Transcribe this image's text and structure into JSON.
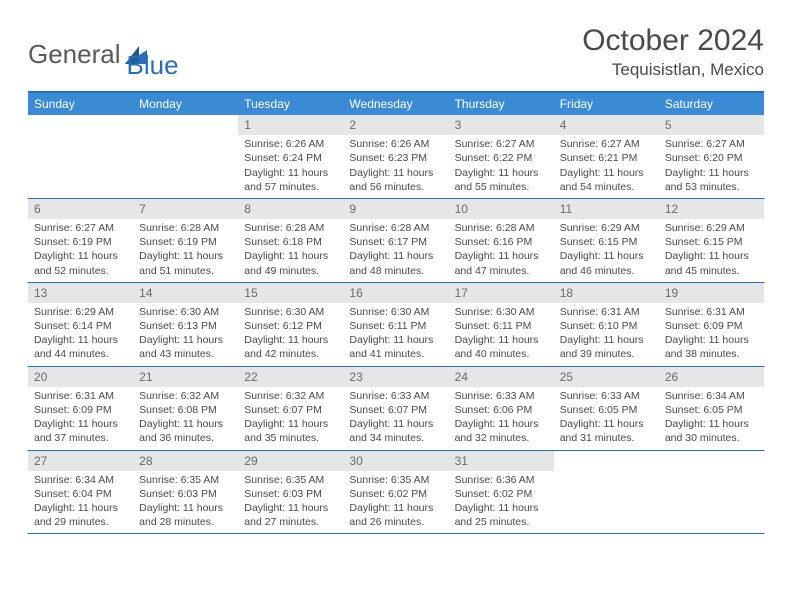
{
  "logo": {
    "part1": "General",
    "part2": "Blue"
  },
  "title": "October 2024",
  "location": "Tequisistlan, Mexico",
  "colors": {
    "header_bg": "#3b8bd4",
    "border": "#2a6fb5",
    "daynum_bg": "#e6e6e6",
    "text": "#4a4a4a"
  },
  "dow": [
    "Sunday",
    "Monday",
    "Tuesday",
    "Wednesday",
    "Thursday",
    "Friday",
    "Saturday"
  ],
  "weeks": [
    [
      null,
      null,
      {
        "n": "1",
        "sr": "6:26 AM",
        "ss": "6:24 PM",
        "dl": "11 hours and 57 minutes."
      },
      {
        "n": "2",
        "sr": "6:26 AM",
        "ss": "6:23 PM",
        "dl": "11 hours and 56 minutes."
      },
      {
        "n": "3",
        "sr": "6:27 AM",
        "ss": "6:22 PM",
        "dl": "11 hours and 55 minutes."
      },
      {
        "n": "4",
        "sr": "6:27 AM",
        "ss": "6:21 PM",
        "dl": "11 hours and 54 minutes."
      },
      {
        "n": "5",
        "sr": "6:27 AM",
        "ss": "6:20 PM",
        "dl": "11 hours and 53 minutes."
      }
    ],
    [
      {
        "n": "6",
        "sr": "6:27 AM",
        "ss": "6:19 PM",
        "dl": "11 hours and 52 minutes."
      },
      {
        "n": "7",
        "sr": "6:28 AM",
        "ss": "6:19 PM",
        "dl": "11 hours and 51 minutes."
      },
      {
        "n": "8",
        "sr": "6:28 AM",
        "ss": "6:18 PM",
        "dl": "11 hours and 49 minutes."
      },
      {
        "n": "9",
        "sr": "6:28 AM",
        "ss": "6:17 PM",
        "dl": "11 hours and 48 minutes."
      },
      {
        "n": "10",
        "sr": "6:28 AM",
        "ss": "6:16 PM",
        "dl": "11 hours and 47 minutes."
      },
      {
        "n": "11",
        "sr": "6:29 AM",
        "ss": "6:15 PM",
        "dl": "11 hours and 46 minutes."
      },
      {
        "n": "12",
        "sr": "6:29 AM",
        "ss": "6:15 PM",
        "dl": "11 hours and 45 minutes."
      }
    ],
    [
      {
        "n": "13",
        "sr": "6:29 AM",
        "ss": "6:14 PM",
        "dl": "11 hours and 44 minutes."
      },
      {
        "n": "14",
        "sr": "6:30 AM",
        "ss": "6:13 PM",
        "dl": "11 hours and 43 minutes."
      },
      {
        "n": "15",
        "sr": "6:30 AM",
        "ss": "6:12 PM",
        "dl": "11 hours and 42 minutes."
      },
      {
        "n": "16",
        "sr": "6:30 AM",
        "ss": "6:11 PM",
        "dl": "11 hours and 41 minutes."
      },
      {
        "n": "17",
        "sr": "6:30 AM",
        "ss": "6:11 PM",
        "dl": "11 hours and 40 minutes."
      },
      {
        "n": "18",
        "sr": "6:31 AM",
        "ss": "6:10 PM",
        "dl": "11 hours and 39 minutes."
      },
      {
        "n": "19",
        "sr": "6:31 AM",
        "ss": "6:09 PM",
        "dl": "11 hours and 38 minutes."
      }
    ],
    [
      {
        "n": "20",
        "sr": "6:31 AM",
        "ss": "6:09 PM",
        "dl": "11 hours and 37 minutes."
      },
      {
        "n": "21",
        "sr": "6:32 AM",
        "ss": "6:08 PM",
        "dl": "11 hours and 36 minutes."
      },
      {
        "n": "22",
        "sr": "6:32 AM",
        "ss": "6:07 PM",
        "dl": "11 hours and 35 minutes."
      },
      {
        "n": "23",
        "sr": "6:33 AM",
        "ss": "6:07 PM",
        "dl": "11 hours and 34 minutes."
      },
      {
        "n": "24",
        "sr": "6:33 AM",
        "ss": "6:06 PM",
        "dl": "11 hours and 32 minutes."
      },
      {
        "n": "25",
        "sr": "6:33 AM",
        "ss": "6:05 PM",
        "dl": "11 hours and 31 minutes."
      },
      {
        "n": "26",
        "sr": "6:34 AM",
        "ss": "6:05 PM",
        "dl": "11 hours and 30 minutes."
      }
    ],
    [
      {
        "n": "27",
        "sr": "6:34 AM",
        "ss": "6:04 PM",
        "dl": "11 hours and 29 minutes."
      },
      {
        "n": "28",
        "sr": "6:35 AM",
        "ss": "6:03 PM",
        "dl": "11 hours and 28 minutes."
      },
      {
        "n": "29",
        "sr": "6:35 AM",
        "ss": "6:03 PM",
        "dl": "11 hours and 27 minutes."
      },
      {
        "n": "30",
        "sr": "6:35 AM",
        "ss": "6:02 PM",
        "dl": "11 hours and 26 minutes."
      },
      {
        "n": "31",
        "sr": "6:36 AM",
        "ss": "6:02 PM",
        "dl": "11 hours and 25 minutes."
      },
      null,
      null
    ]
  ],
  "labels": {
    "sunrise": "Sunrise:",
    "sunset": "Sunset:",
    "daylight": "Daylight:"
  }
}
